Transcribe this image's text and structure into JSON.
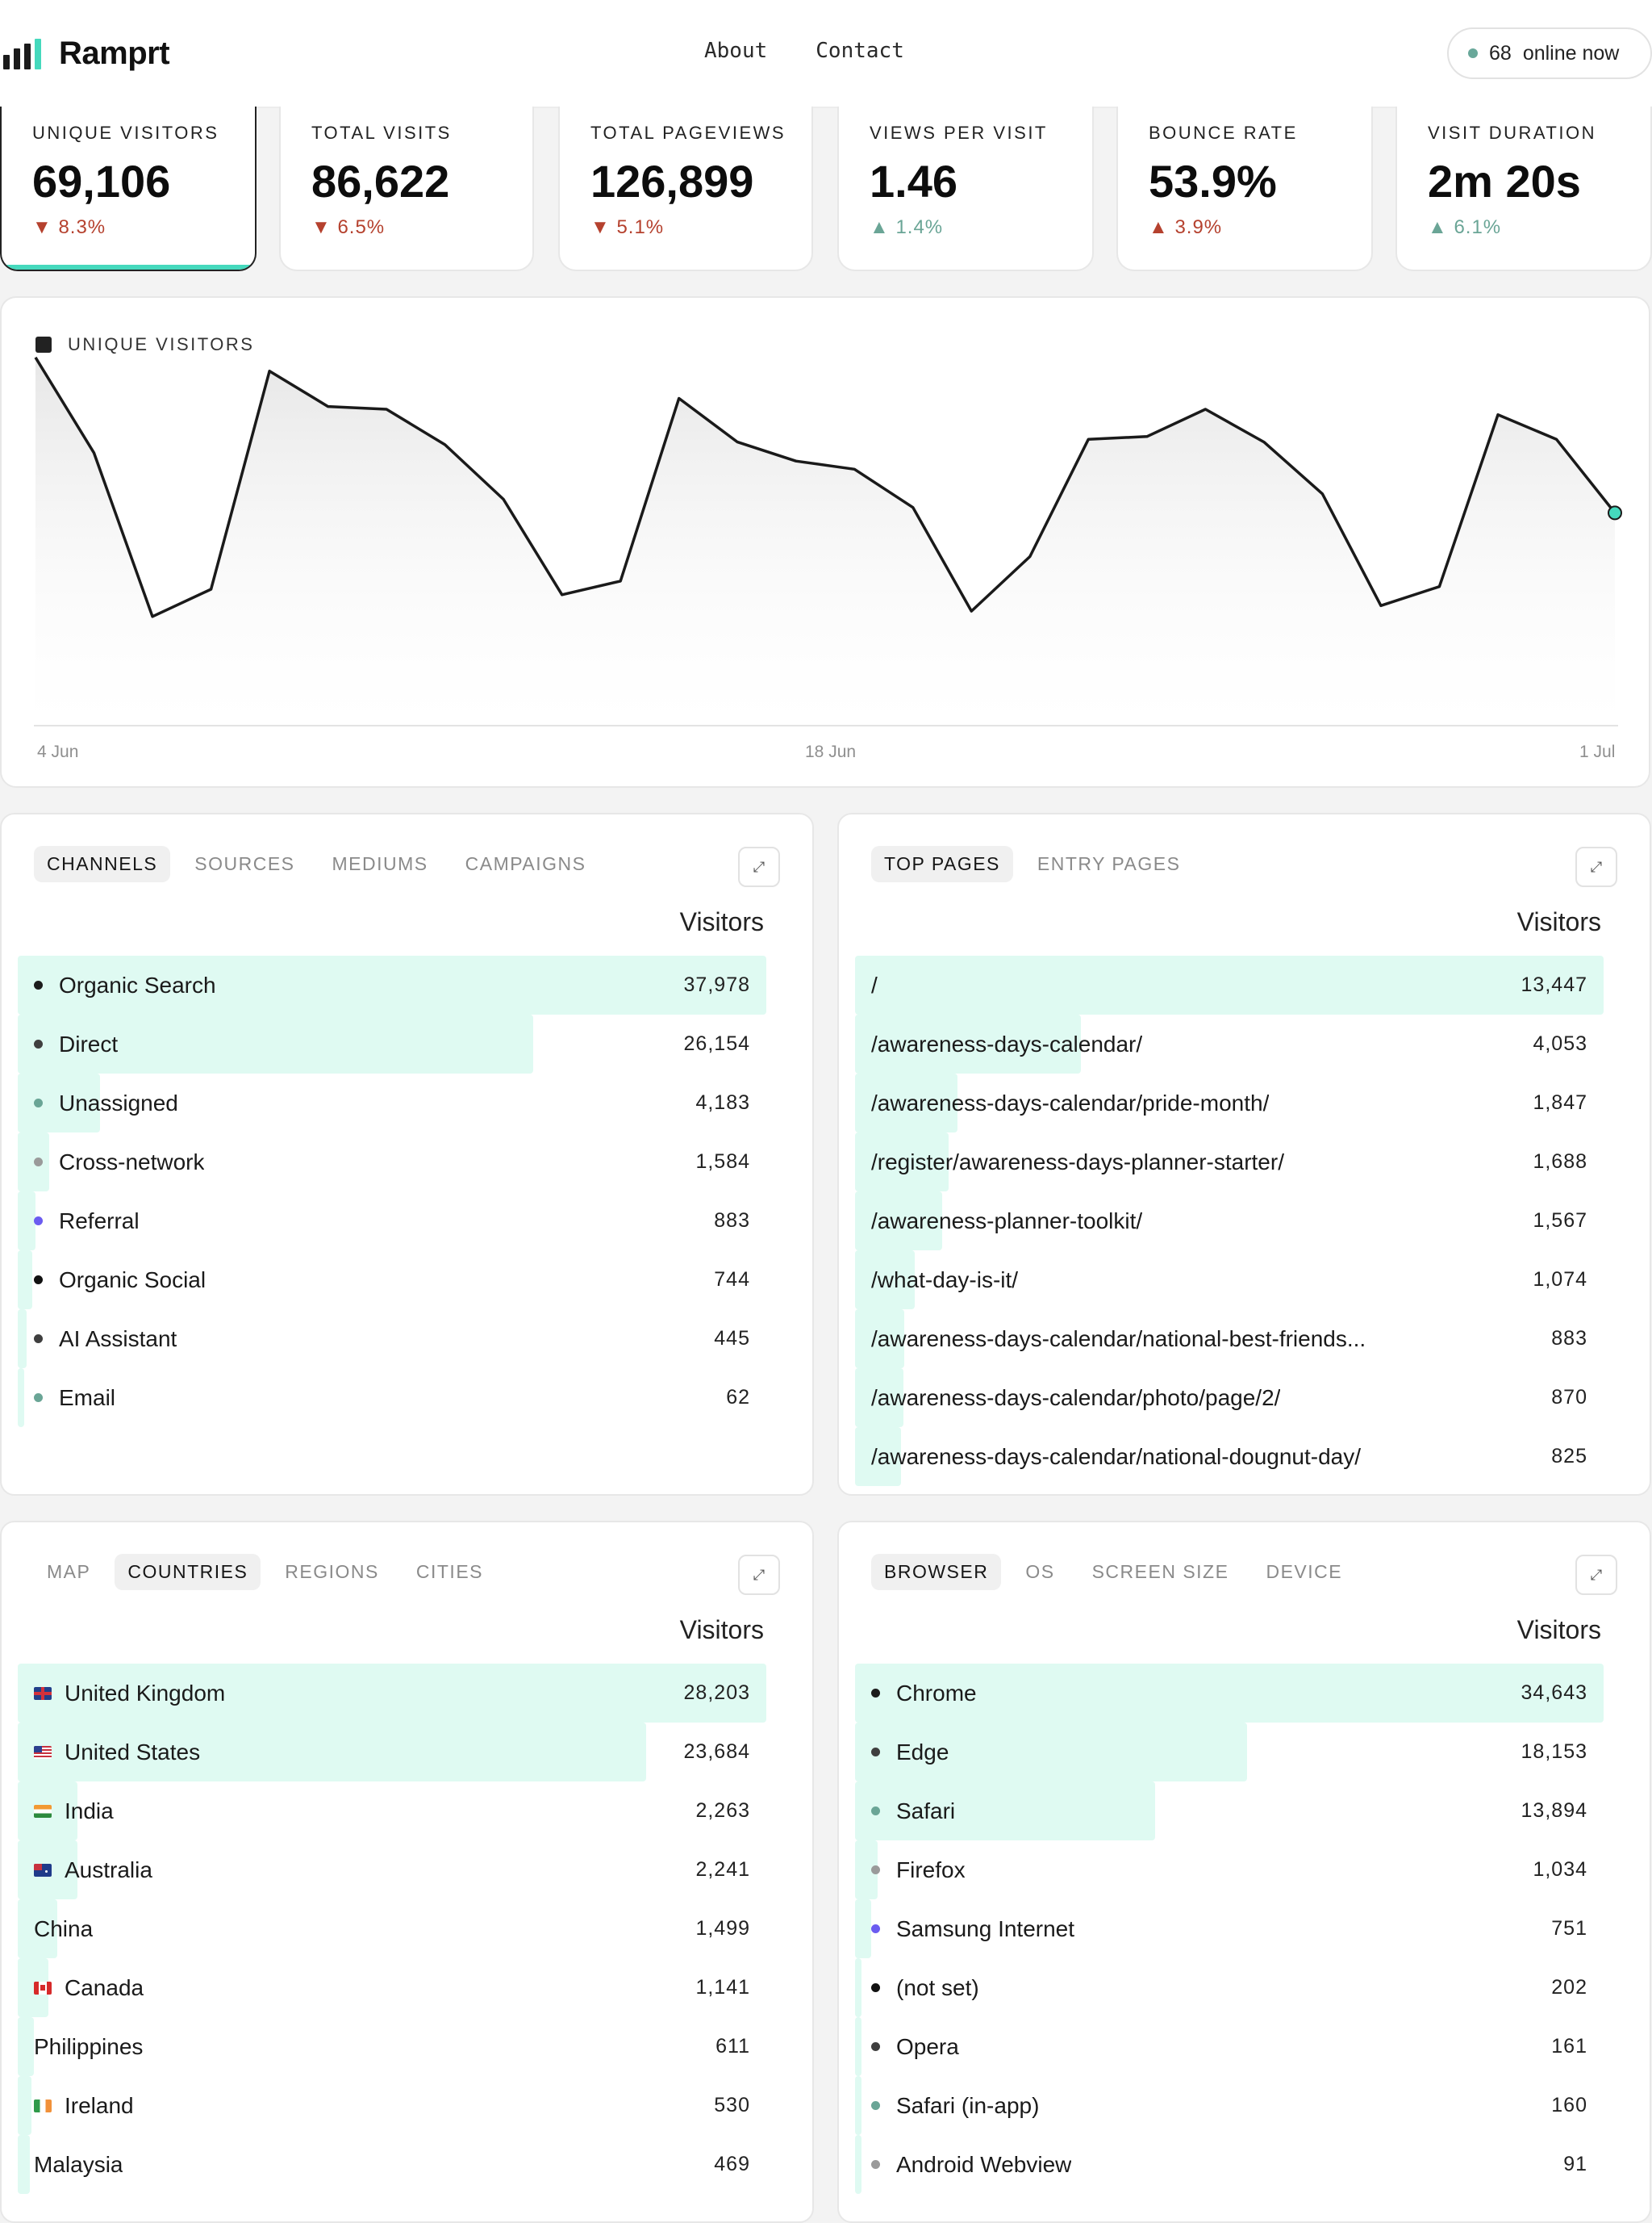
{
  "header": {
    "brand": "Ramprt",
    "nav": [
      "About",
      "Contact"
    ],
    "online_count": "68",
    "online_label": "online now"
  },
  "stats": [
    {
      "label": "UNIQUE VISITORS",
      "value": "69,106",
      "delta": "8.3%",
      "direction": "down"
    },
    {
      "label": "TOTAL VISITS",
      "value": "86,622",
      "delta": "6.5%",
      "direction": "down"
    },
    {
      "label": "TOTAL PAGEVIEWS",
      "value": "126,899",
      "delta": "5.1%",
      "direction": "down"
    },
    {
      "label": "VIEWS PER VISIT",
      "value": "1.46",
      "delta": "1.4%",
      "direction": "up"
    },
    {
      "label": "BOUNCE RATE",
      "value": "53.9%",
      "delta": "3.9%",
      "direction": "up"
    },
    {
      "label": "VISIT DURATION",
      "value": "2m 20s",
      "delta": "6.1%",
      "direction": "up"
    }
  ],
  "chart_data": {
    "type": "area",
    "title": "UNIQUE VISITORS",
    "x": [
      "4 Jun",
      "5 Jun",
      "6 Jun",
      "7 Jun",
      "8 Jun",
      "9 Jun",
      "10 Jun",
      "11 Jun",
      "12 Jun",
      "13 Jun",
      "14 Jun",
      "15 Jun",
      "16 Jun",
      "17 Jun",
      "18 Jun",
      "19 Jun",
      "20 Jun",
      "21 Jun",
      "22 Jun",
      "23 Jun",
      "24 Jun",
      "25 Jun",
      "26 Jun",
      "27 Jun",
      "28 Jun",
      "29 Jun",
      "30 Jun",
      "1 Jul"
    ],
    "x_tick_labels": [
      "4 Jun",
      "18 Jun",
      "1 Jul"
    ],
    "values": [
      3250,
      2900,
      2300,
      2400,
      3200,
      3070,
      3060,
      2930,
      2730,
      2380,
      2430,
      3100,
      2940,
      2870,
      2840,
      2700,
      2320,
      2520,
      2950,
      2960,
      3060,
      2940,
      2750,
      2340,
      2410,
      3040,
      2950,
      2680
    ],
    "ylim": [
      1900,
      3350
    ],
    "grid": false,
    "line_color": "#1a1a1a",
    "last_point_color": "#45d9bd"
  },
  "channels": {
    "tabs": [
      "CHANNELS",
      "SOURCES",
      "MEDIUMS",
      "CAMPAIGNS"
    ],
    "column": "Visitors",
    "rows": [
      {
        "label": "Organic Search",
        "value": "37,978",
        "n": 37978,
        "color": "#1c1c1c"
      },
      {
        "label": "Direct",
        "value": "26,154",
        "n": 26154,
        "color": "#3f3f3f"
      },
      {
        "label": "Unassigned",
        "value": "4,183",
        "n": 4183,
        "color": "#6aa596"
      },
      {
        "label": "Cross-network",
        "value": "1,584",
        "n": 1584,
        "color": "#9a9a9a"
      },
      {
        "label": "Referral",
        "value": "883",
        "n": 883,
        "color": "#6b5cf0"
      },
      {
        "label": "Organic Social",
        "value": "744",
        "n": 744,
        "color": "#111111"
      },
      {
        "label": "AI Assistant",
        "value": "445",
        "n": 445,
        "color": "#3f3f3f"
      },
      {
        "label": "Email",
        "value": "62",
        "n": 62,
        "color": "#6aa596"
      }
    ]
  },
  "pages": {
    "tabs": [
      "TOP PAGES",
      "ENTRY PAGES"
    ],
    "column": "Visitors",
    "rows": [
      {
        "label": "/",
        "value": "13,447",
        "n": 13447
      },
      {
        "label": "/awareness-days-calendar/",
        "value": "4,053",
        "n": 4053
      },
      {
        "label": "/awareness-days-calendar/pride-month/",
        "value": "1,847",
        "n": 1847
      },
      {
        "label": "/register/awareness-days-planner-starter/",
        "value": "1,688",
        "n": 1688
      },
      {
        "label": "/awareness-planner-toolkit/",
        "value": "1,567",
        "n": 1567
      },
      {
        "label": "/what-day-is-it/",
        "value": "1,074",
        "n": 1074
      },
      {
        "label": "/awareness-days-calendar/national-best-friends...",
        "value": "883",
        "n": 883
      },
      {
        "label": "/awareness-days-calendar/photo/page/2/",
        "value": "870",
        "n": 870
      },
      {
        "label": "/awareness-days-calendar/national-dougnut-day/",
        "value": "825",
        "n": 825
      }
    ]
  },
  "countries": {
    "tabs": [
      "MAP",
      "COUNTRIES",
      "REGIONS",
      "CITIES"
    ],
    "column": "Visitors",
    "rows": [
      {
        "label": "United Kingdom",
        "value": "28,203",
        "n": 28203,
        "flag": "gb"
      },
      {
        "label": "United States",
        "value": "23,684",
        "n": 23684,
        "flag": "us"
      },
      {
        "label": "India",
        "value": "2,263",
        "n": 2263,
        "flag": "in"
      },
      {
        "label": "Australia",
        "value": "2,241",
        "n": 2241,
        "flag": "au"
      },
      {
        "label": "China",
        "value": "1,499",
        "n": 1499,
        "flag": ""
      },
      {
        "label": "Canada",
        "value": "1,141",
        "n": 1141,
        "flag": "ca"
      },
      {
        "label": "Philippines",
        "value": "611",
        "n": 611,
        "flag": ""
      },
      {
        "label": "Ireland",
        "value": "530",
        "n": 530,
        "flag": "ie"
      },
      {
        "label": "Malaysia",
        "value": "469",
        "n": 469,
        "flag": ""
      }
    ]
  },
  "browsers": {
    "tabs": [
      "BROWSER",
      "OS",
      "SCREEN SIZE",
      "DEVICE"
    ],
    "column": "Visitors",
    "rows": [
      {
        "label": "Chrome",
        "value": "34,643",
        "n": 34643,
        "color": "#1c1c1c"
      },
      {
        "label": "Edge",
        "value": "18,153",
        "n": 18153,
        "color": "#3f3f3f"
      },
      {
        "label": "Safari",
        "value": "13,894",
        "n": 13894,
        "color": "#6aa596"
      },
      {
        "label": "Firefox",
        "value": "1,034",
        "n": 1034,
        "color": "#9a9a9a"
      },
      {
        "label": "Samsung Internet",
        "value": "751",
        "n": 751,
        "color": "#6b5cf0"
      },
      {
        "label": "(not set)",
        "value": "202",
        "n": 202,
        "color": "#111111"
      },
      {
        "label": "Opera",
        "value": "161",
        "n": 161,
        "color": "#3f3f3f"
      },
      {
        "label": "Safari (in-app)",
        "value": "160",
        "n": 160,
        "color": "#6aa596"
      },
      {
        "label": "Android Webview",
        "value": "91",
        "n": 91,
        "color": "#9a9a9a"
      }
    ]
  }
}
